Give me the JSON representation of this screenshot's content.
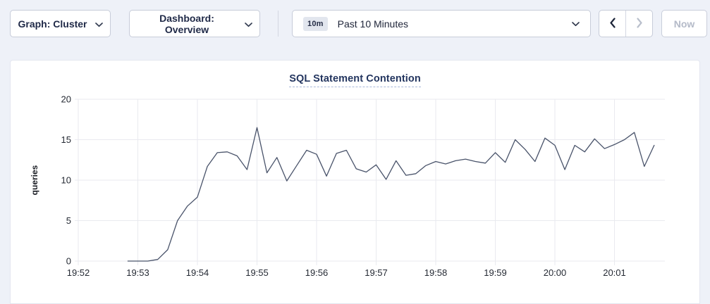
{
  "toolbar": {
    "graph_dropdown": {
      "label": "Graph: Cluster"
    },
    "dashboard_dropdown": {
      "label": "Dashboard: Overview"
    },
    "time_range": {
      "badge": "10m",
      "label": "Past 10 Minutes"
    },
    "prev_button": {
      "icon": "chevron-left",
      "enabled": true
    },
    "next_button": {
      "icon": "chevron-right",
      "enabled": false
    },
    "now_button": {
      "label": "Now",
      "enabled": false
    }
  },
  "colors": {
    "page_background": "#eef1f8",
    "card_background": "#ffffff",
    "toolbar_text": "#1f2947",
    "title_text": "#23355f",
    "disabled_text": "#b4bac8"
  },
  "chart_data": {
    "type": "line",
    "title": "SQL Statement Contention",
    "xlabel": "",
    "ylabel": "queries",
    "ylim": [
      0,
      20
    ],
    "yticks": [
      0,
      5,
      10,
      15,
      20
    ],
    "categories": [
      "19:52",
      "19:53",
      "19:54",
      "19:55",
      "19:56",
      "19:57",
      "19:58",
      "19:59",
      "20:00",
      "20:01"
    ],
    "x_tick_interval_sec": 60,
    "t_start_sec": 50,
    "t_step_sec": 10,
    "grid": true,
    "legend_position": "none",
    "grid_color": "#e9eaef",
    "tick_color": "#242933",
    "axis_label_color": "#181b22",
    "series": [
      {
        "name": "queries",
        "color": "#49536a",
        "values": [
          0,
          0,
          0,
          0.2,
          1.4,
          5,
          6.8,
          7.9,
          11.7,
          13.4,
          13.5,
          13,
          11.3,
          16.5,
          10.9,
          12.8,
          9.9,
          11.8,
          13.7,
          13.2,
          10.5,
          13.3,
          13.7,
          11.4,
          11,
          11.9,
          10.1,
          12.4,
          10.6,
          10.8,
          11.8,
          12.3,
          12,
          12.4,
          12.6,
          12.3,
          12.1,
          13.4,
          12.2,
          15,
          13.8,
          12.3,
          15.2,
          14.3,
          11.3,
          14.3,
          13.5,
          15.1,
          13.9,
          14.4,
          15,
          15.9,
          11.7,
          14.3
        ]
      }
    ]
  }
}
